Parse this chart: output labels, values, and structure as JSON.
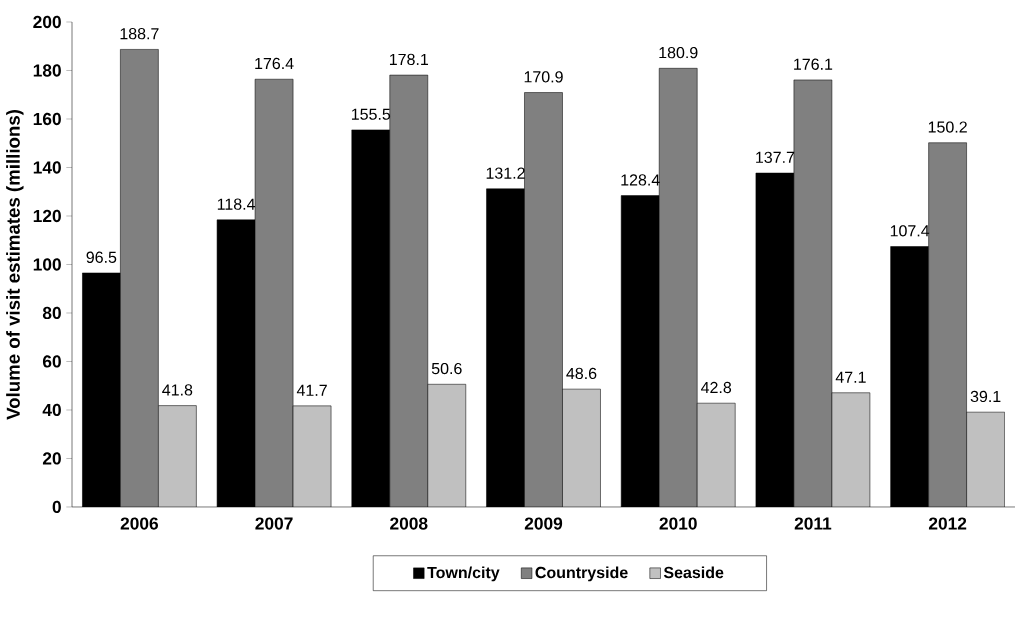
{
  "chart_data": {
    "type": "bar",
    "ylabel": "Volume of visit estimates (millions)",
    "categories": [
      "2006",
      "2007",
      "2008",
      "2009",
      "2010",
      "2011",
      "2012"
    ],
    "series": [
      {
        "name": "Town/city",
        "color": "#000000",
        "values": [
          96.5,
          118.4,
          155.5,
          131.2,
          128.4,
          137.7,
          107.4
        ]
      },
      {
        "name": "Countryside",
        "color": "#808080",
        "values": [
          188.7,
          176.4,
          178.1,
          170.9,
          180.9,
          176.1,
          150.2
        ]
      },
      {
        "name": "Seaside",
        "color": "#c0c0c0",
        "values": [
          41.8,
          41.7,
          50.6,
          48.6,
          42.8,
          47.1,
          39.1
        ]
      }
    ],
    "ylim": [
      0,
      200
    ],
    "yticks": [
      0,
      20,
      40,
      60,
      80,
      100,
      120,
      140,
      160,
      180,
      200
    ],
    "data_labels": true,
    "legend": "bottom"
  }
}
